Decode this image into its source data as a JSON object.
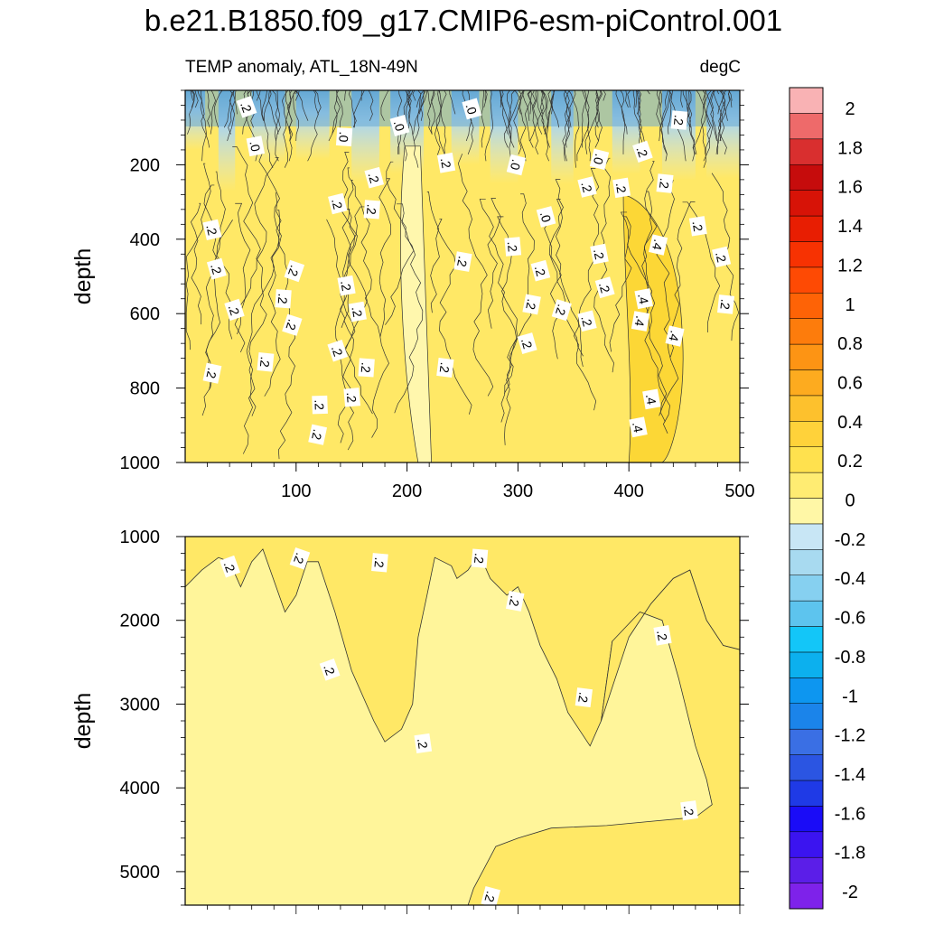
{
  "title": "b.e21.B1850.f09_g17.CMIP6-esm-piControl.001",
  "chart_data": {
    "type": "heatmap",
    "variable_label": "TEMP anomaly, ATL_18N-49N",
    "units": "degC",
    "colorbar": {
      "levels": [
        -2,
        -1.8,
        -1.6,
        -1.4,
        -1.2,
        -1,
        -0.8,
        -0.6,
        -0.4,
        -0.2,
        0,
        0.2,
        0.4,
        0.6,
        0.8,
        1,
        1.2,
        1.4,
        1.6,
        1.8,
        2
      ],
      "tick_labels": [
        "-2",
        "-1.8",
        "-1.6",
        "-1.4",
        "-1.2",
        "-1",
        "-0.8",
        "-0.6",
        "-0.4",
        "-0.2",
        "0",
        "0.2",
        "0.4",
        "0.6",
        "0.8",
        "1",
        "1.2",
        "1.4",
        "1.6",
        "1.8",
        "2"
      ],
      "colors": [
        "#7e22ea",
        "#5b1ee8",
        "#3b14f0",
        "#1a0cf7",
        "#1f3ae6",
        "#2b55e2",
        "#3a6fe4",
        "#1b84ea",
        "#0d96f0",
        "#0cb0ee",
        "#13c6f8",
        "#5dc4ee",
        "#86d0f0",
        "#a8daf0",
        "#c8e6f5",
        "#fff7a6",
        "#ffec72",
        "#ffe14e",
        "#ffd23a",
        "#fdc12d",
        "#fdab1f",
        "#fd9414",
        "#fd7c0c",
        "#fe6306",
        "#fe4a04",
        "#f73202",
        "#e81e02",
        "#d71307",
        "#c60c0c",
        "#d92f2f",
        "#ee6a6a",
        "#f9b2b4"
      ]
    },
    "panels": [
      {
        "name": "upper",
        "xlim": [
          0,
          500
        ],
        "ylim": [
          1000,
          0
        ],
        "ylabel": "depth",
        "x_ticks": [
          100,
          200,
          300,
          400,
          500
        ],
        "x_tick_labels": [
          "100",
          "200",
          "300",
          "400",
          "500"
        ],
        "y_ticks": [
          200,
          400,
          600,
          800,
          1000
        ],
        "y_tick_labels": [
          "200",
          "400",
          "600",
          "800",
          "1000"
        ],
        "contour_labels": [
          {
            "x": 55,
            "y": 45,
            "text": ".2"
          },
          {
            "x": 193,
            "y": 95,
            "text": ".0"
          },
          {
            "x": 258,
            "y": 50,
            "text": ".0"
          },
          {
            "x": 445,
            "y": 80,
            "text": ".2"
          },
          {
            "x": 63,
            "y": 150,
            "text": ".0"
          },
          {
            "x": 143,
            "y": 125,
            "text": ".0"
          },
          {
            "x": 235,
            "y": 195,
            "text": ".2"
          },
          {
            "x": 298,
            "y": 200,
            "text": ".0"
          },
          {
            "x": 373,
            "y": 185,
            "text": ".0"
          },
          {
            "x": 412,
            "y": 165,
            "text": ".2"
          },
          {
            "x": 170,
            "y": 235,
            "text": ".2"
          },
          {
            "x": 137,
            "y": 305,
            "text": ".2"
          },
          {
            "x": 168,
            "y": 320,
            "text": ".2"
          },
          {
            "x": 362,
            "y": 260,
            "text": ".2"
          },
          {
            "x": 393,
            "y": 262,
            "text": ".2"
          },
          {
            "x": 432,
            "y": 250,
            "text": ".2"
          },
          {
            "x": 325,
            "y": 340,
            "text": ".0"
          },
          {
            "x": 24,
            "y": 375,
            "text": ".2"
          },
          {
            "x": 295,
            "y": 420,
            "text": ".2"
          },
          {
            "x": 426,
            "y": 415,
            "text": ".4"
          },
          {
            "x": 462,
            "y": 365,
            "text": ".2"
          },
          {
            "x": 28,
            "y": 480,
            "text": ".2"
          },
          {
            "x": 98,
            "y": 485,
            "text": ".2"
          },
          {
            "x": 250,
            "y": 460,
            "text": ".2"
          },
          {
            "x": 320,
            "y": 485,
            "text": ".2"
          },
          {
            "x": 373,
            "y": 440,
            "text": ".2"
          },
          {
            "x": 483,
            "y": 448,
            "text": ".2"
          },
          {
            "x": 145,
            "y": 525,
            "text": ".2"
          },
          {
            "x": 378,
            "y": 530,
            "text": ".2"
          },
          {
            "x": 88,
            "y": 560,
            "text": ".2"
          },
          {
            "x": 413,
            "y": 560,
            "text": ".4"
          },
          {
            "x": 44,
            "y": 590,
            "text": ".2"
          },
          {
            "x": 155,
            "y": 595,
            "text": ".2"
          },
          {
            "x": 312,
            "y": 575,
            "text": ".2"
          },
          {
            "x": 339,
            "y": 590,
            "text": ".2"
          },
          {
            "x": 96,
            "y": 630,
            "text": ".2"
          },
          {
            "x": 362,
            "y": 620,
            "text": ".2"
          },
          {
            "x": 410,
            "y": 620,
            "text": ".4"
          },
          {
            "x": 487,
            "y": 575,
            "text": ".2"
          },
          {
            "x": 441,
            "y": 660,
            "text": ".4"
          },
          {
            "x": 308,
            "y": 680,
            "text": ".2"
          },
          {
            "x": 137,
            "y": 700,
            "text": ".2"
          },
          {
            "x": 72,
            "y": 730,
            "text": ".2"
          },
          {
            "x": 163,
            "y": 745,
            "text": ".2"
          },
          {
            "x": 234,
            "y": 745,
            "text": ".2"
          },
          {
            "x": 24,
            "y": 760,
            "text": ".2"
          },
          {
            "x": 150,
            "y": 825,
            "text": ".2"
          },
          {
            "x": 420,
            "y": 830,
            "text": ".4"
          },
          {
            "x": 121,
            "y": 845,
            "text": ".2"
          },
          {
            "x": 408,
            "y": 905,
            "text": ".4"
          },
          {
            "x": 119,
            "y": 925,
            "text": ".2"
          }
        ]
      },
      {
        "name": "lower",
        "xlim": [
          0,
          500
        ],
        "ylim": [
          5400,
          1000
        ],
        "ylabel": "depth",
        "y_ticks": [
          1000,
          2000,
          3000,
          4000,
          5000
        ],
        "y_tick_labels": [
          "1000",
          "2000",
          "3000",
          "4000",
          "5000"
        ],
        "contour_labels": [
          {
            "x": 40,
            "y": 1360,
            "text": ".2"
          },
          {
            "x": 103,
            "y": 1260,
            "text": ".2"
          },
          {
            "x": 175,
            "y": 1310,
            "text": ".2"
          },
          {
            "x": 265,
            "y": 1260,
            "text": ".2"
          },
          {
            "x": 297,
            "y": 1770,
            "text": ".2"
          },
          {
            "x": 430,
            "y": 2180,
            "text": ".2"
          },
          {
            "x": 130,
            "y": 2590,
            "text": ".2"
          },
          {
            "x": 359,
            "y": 2920,
            "text": ".2"
          },
          {
            "x": 214,
            "y": 3470,
            "text": ".2"
          },
          {
            "x": 454,
            "y": 4270,
            "text": ".2"
          },
          {
            "x": 275,
            "y": 5300,
            "text": ".2"
          }
        ]
      }
    ]
  }
}
